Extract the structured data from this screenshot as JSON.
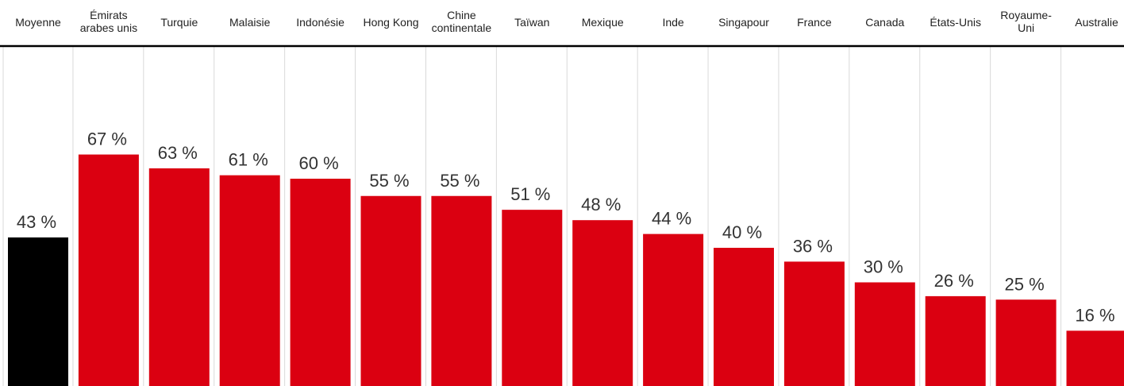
{
  "colors": {
    "average": "#000000",
    "bar": "#db0011",
    "grid": "#d9d9d9",
    "axis": "#000000"
  },
  "chart_data": {
    "type": "bar",
    "categories": [
      "Moyenne",
      "Émirats arabes unis",
      "Turquie",
      "Malaisie",
      "Indonésie",
      "Hong Kong",
      "Chine continentale",
      "Taïwan",
      "Mexique",
      "Inde",
      "Singapour",
      "France",
      "Canada",
      "États-Unis",
      "Royaume-Uni",
      "Australie"
    ],
    "category_lines": [
      [
        "Moyenne"
      ],
      [
        "Émirats",
        "arabes unis"
      ],
      [
        "Turquie"
      ],
      [
        "Malaisie"
      ],
      [
        "Indonésie"
      ],
      [
        "Hong Kong"
      ],
      [
        "Chine",
        "continentale"
      ],
      [
        "Taïwan"
      ],
      [
        "Mexique"
      ],
      [
        "Inde"
      ],
      [
        "Singapour"
      ],
      [
        "France"
      ],
      [
        "Canada"
      ],
      [
        "États-Unis"
      ],
      [
        "Royaume-",
        "Uni"
      ],
      [
        "Australie"
      ]
    ],
    "values": [
      43,
      67,
      63,
      61,
      60,
      55,
      55,
      51,
      48,
      44,
      40,
      36,
      30,
      26,
      25,
      16
    ],
    "value_labels": [
      "43 %",
      "67 %",
      "63 %",
      "61 %",
      "60 %",
      "55 %",
      "55 %",
      "51 %",
      "48 %",
      "44 %",
      "40 %",
      "36 %",
      "30 %",
      "26 %",
      "25 %",
      "16 %"
    ],
    "highlight_index": 0,
    "title": "",
    "xlabel": "",
    "ylabel": "",
    "ylim": [
      0,
      100
    ],
    "grid": true,
    "legend": "none"
  }
}
